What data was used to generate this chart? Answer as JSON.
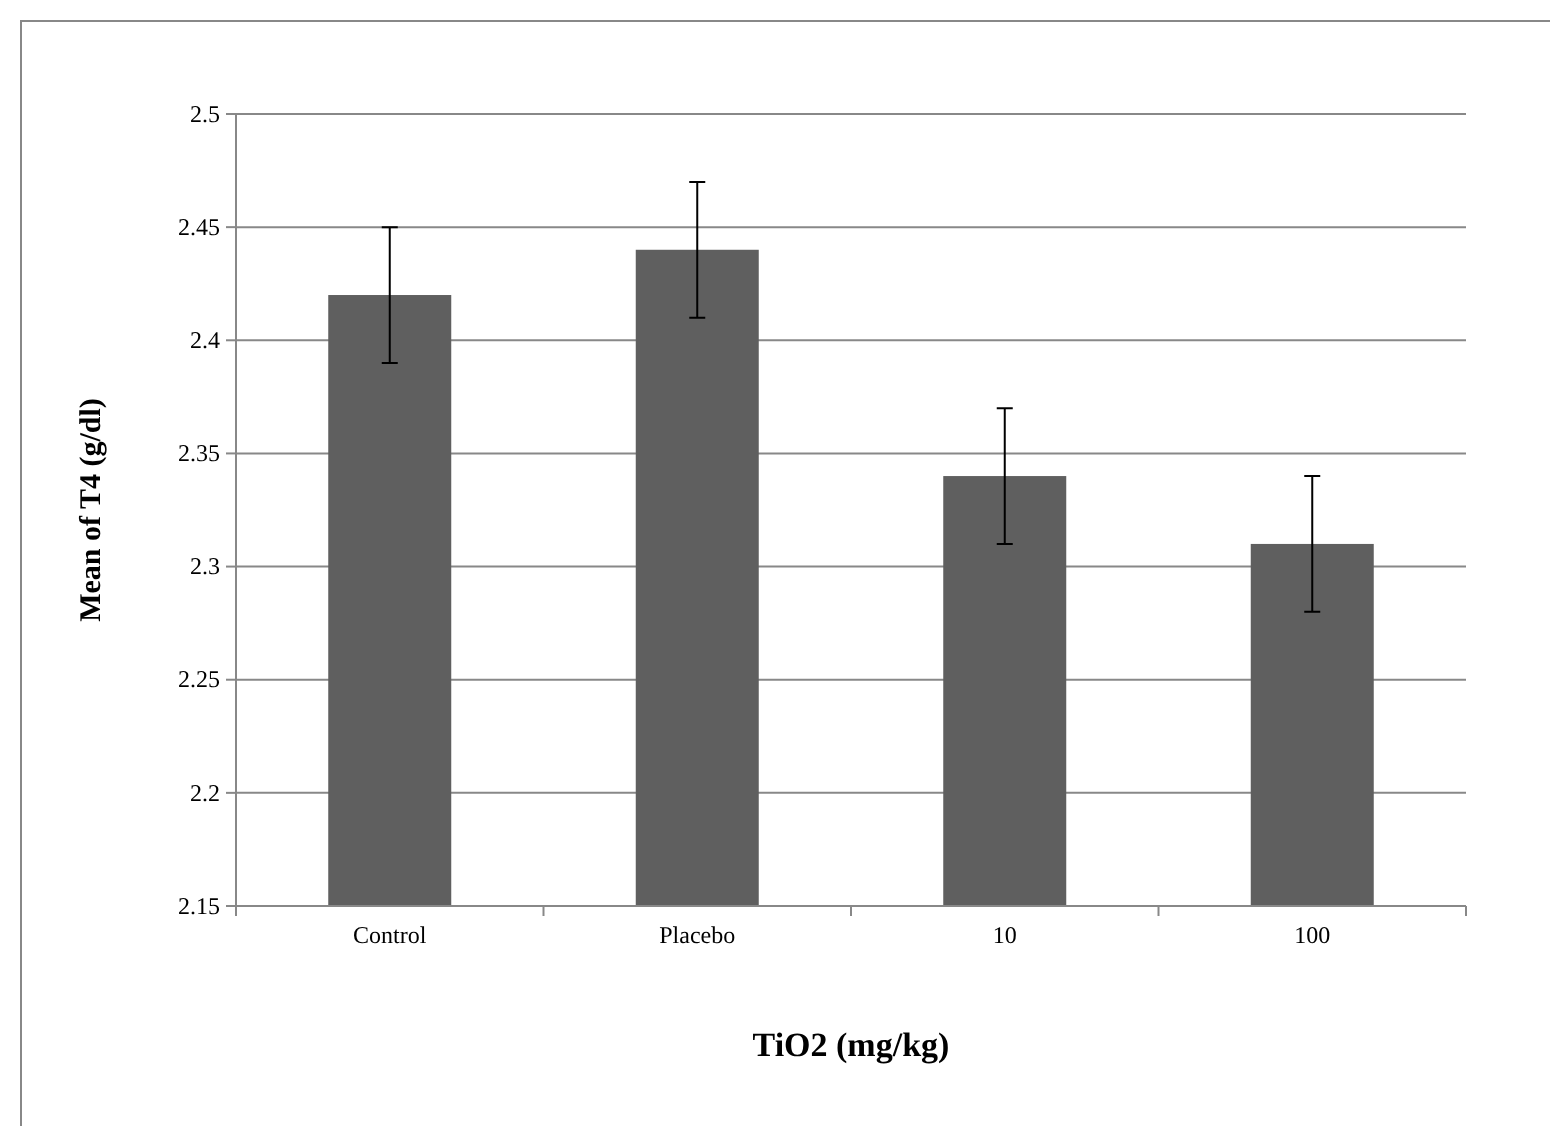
{
  "chart_data": {
    "type": "bar",
    "xlabel": "TiO2 (mg/kg)",
    "ylabel": "Mean of T4 (g/dl)",
    "categories": [
      "Control",
      "Placebo",
      "10",
      "100"
    ],
    "values": [
      2.42,
      2.44,
      2.34,
      2.31
    ],
    "errors": [
      0.03,
      0.03,
      0.03,
      0.03
    ],
    "color": "#5f5f5f",
    "ylim": [
      2.15,
      2.5
    ],
    "yticks": [
      2.15,
      2.2,
      2.25,
      2.3,
      2.35,
      2.4,
      2.45,
      2.5
    ],
    "grid": "y"
  }
}
